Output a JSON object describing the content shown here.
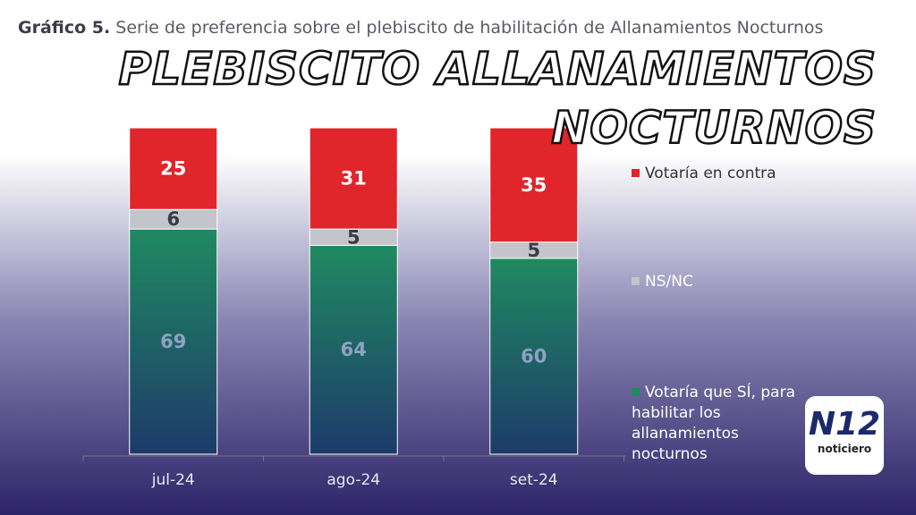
{
  "chart_data": {
    "type": "stacked-bar",
    "figure_label": "Gráfico 5.",
    "title": "Serie de preferencia sobre el plebiscito de habilitación de Allanamientos Nocturnos",
    "categories": [
      "jul-24",
      "ago-24",
      "set-24"
    ],
    "series": [
      {
        "name": "Votaría que SÍ, para habilitar los allanamientos nocturnos",
        "color": "#1f8a60",
        "label_color": "#8fa1c2",
        "values": [
          69,
          64,
          60
        ]
      },
      {
        "name": "NS/NC",
        "color": "#c4c4cc",
        "label_color": "#3a3a44",
        "values": [
          6,
          5,
          5
        ]
      },
      {
        "name": "Votaría en contra",
        "color": "#e0252b",
        "label_color": "#ffffff",
        "values": [
          25,
          31,
          35
        ]
      }
    ]
  },
  "overlay": {
    "headline": [
      "PLEBISCITO ALLANAMIENTOS",
      "NOCTURNOS"
    ],
    "logo": "N12",
    "logo_caption": "noticiero"
  }
}
